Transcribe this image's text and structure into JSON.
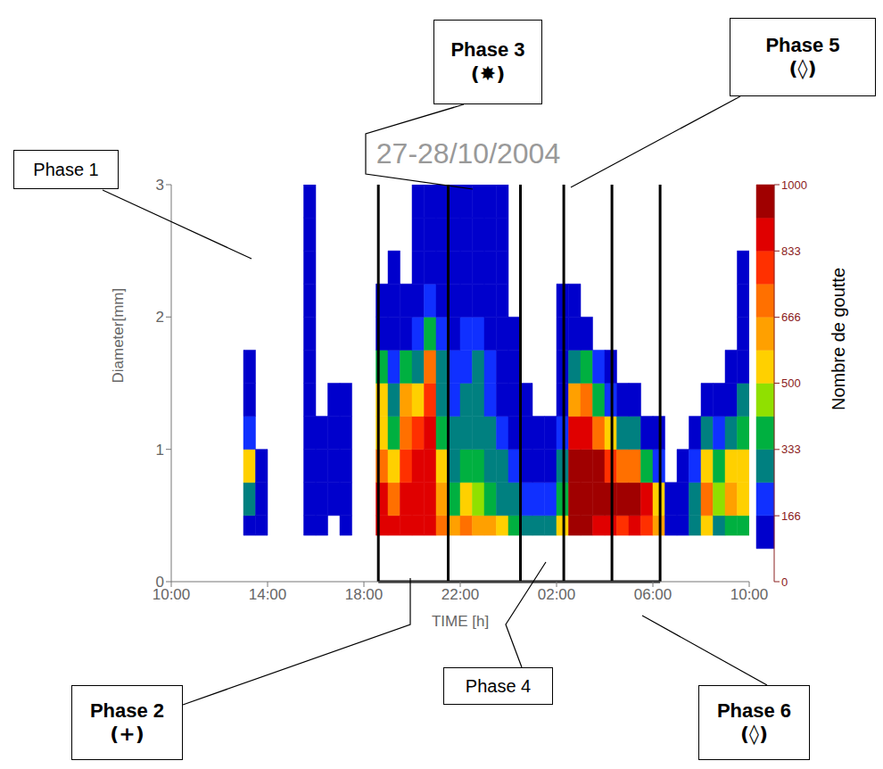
{
  "chart_data": {
    "type": "heatmap",
    "title": "27-28/10/2004",
    "x_label": "TIME [h]",
    "y_label": "Diameter[mm]",
    "xlim": [
      10,
      34
    ],
    "xticks": [
      {
        "value": 10,
        "label": "10:00"
      },
      {
        "value": 14,
        "label": "14:00"
      },
      {
        "value": 18,
        "label": "18:00"
      },
      {
        "value": 22,
        "label": "22:00"
      },
      {
        "value": 26,
        "label": "02:00"
      },
      {
        "value": 30,
        "label": "06:00"
      },
      {
        "value": 34,
        "label": "10:00"
      }
    ],
    "ylim": [
      0,
      3
    ],
    "yticks": [
      0,
      1,
      2,
      3
    ],
    "time_bins": [
      10,
      10.5,
      11,
      11.5,
      12,
      12.5,
      13,
      13.5,
      14,
      14.5,
      15,
      15.5,
      16,
      16.5,
      17,
      17.5,
      18,
      18.5,
      19,
      19.5,
      20,
      20.5,
      21,
      21.5,
      22,
      22.5,
      23,
      23.5,
      24,
      24.5,
      25,
      25.5,
      26,
      26.5,
      27,
      27.5,
      28,
      28.5,
      29,
      29.5,
      30,
      30.5,
      31,
      31.5,
      32,
      32.5,
      33,
      33.5,
      34
    ],
    "diameter_bins": [
      0.35,
      0.5,
      0.75,
      1.0,
      1.25,
      1.5,
      1.75,
      2.0,
      2.25,
      2.5,
      2.75,
      3.0
    ],
    "cells": [
      [
        0,
        0,
        0,
        0,
        0,
        0,
        0,
        0,
        0,
        0,
        0
      ],
      [
        0,
        0,
        0,
        0,
        0,
        0,
        0,
        0,
        0,
        0,
        0
      ],
      [
        0,
        0,
        0,
        0,
        0,
        0,
        0,
        0,
        0,
        0,
        0
      ],
      [
        0,
        0,
        0,
        0,
        0,
        0,
        0,
        0,
        0,
        0,
        0
      ],
      [
        0,
        0,
        0,
        0,
        0,
        0,
        0,
        0,
        0,
        0,
        0
      ],
      [
        0,
        0,
        0,
        0,
        0,
        0,
        0,
        0,
        0,
        0,
        0
      ],
      [
        120,
        300,
        500,
        200,
        120,
        120,
        0,
        0,
        0,
        0,
        0
      ],
      [
        120,
        150,
        120,
        0,
        0,
        0,
        0,
        0,
        0,
        0,
        0
      ],
      [
        0,
        0,
        0,
        0,
        0,
        0,
        0,
        0,
        0,
        0,
        0
      ],
      [
        0,
        0,
        0,
        0,
        0,
        0,
        0,
        0,
        0,
        0,
        0
      ],
      [
        0,
        0,
        0,
        0,
        0,
        0,
        0,
        0,
        0,
        0,
        0
      ],
      [
        120,
        150,
        150,
        120,
        120,
        120,
        120,
        120,
        120,
        120,
        120
      ],
      [
        120,
        150,
        150,
        120,
        0,
        0,
        0,
        0,
        0,
        0,
        0
      ],
      [
        0,
        150,
        150,
        120,
        120,
        0,
        0,
        0,
        0,
        0,
        0
      ],
      [
        120,
        150,
        150,
        120,
        120,
        0,
        0,
        0,
        0,
        0,
        0
      ],
      [
        0,
        0,
        0,
        0,
        0,
        0,
        0,
        0,
        0,
        0,
        0
      ],
      [
        0,
        0,
        0,
        0,
        0,
        0,
        0,
        0,
        0,
        0,
        0
      ],
      [
        900,
        900,
        700,
        550,
        500,
        350,
        150,
        120,
        0,
        0,
        0
      ],
      [
        850,
        700,
        500,
        400,
        300,
        200,
        150,
        120,
        120,
        0,
        0
      ],
      [
        900,
        850,
        800,
        700,
        600,
        350,
        150,
        120,
        0,
        0,
        0
      ],
      [
        850,
        900,
        850,
        750,
        550,
        300,
        200,
        150,
        120,
        120,
        120
      ],
      [
        900,
        900,
        900,
        850,
        800,
        700,
        400,
        200,
        120,
        120,
        120
      ],
      [
        700,
        600,
        500,
        400,
        300,
        250,
        200,
        150,
        150,
        150,
        150
      ],
      [
        600,
        400,
        300,
        250,
        200,
        200,
        150,
        150,
        150,
        150,
        150
      ],
      [
        700,
        500,
        350,
        300,
        250,
        200,
        200,
        150,
        150,
        150,
        150
      ],
      [
        650,
        450,
        350,
        300,
        250,
        250,
        200,
        150,
        150,
        150,
        150
      ],
      [
        600,
        400,
        300,
        250,
        200,
        200,
        150,
        150,
        150,
        120,
        120
      ],
      [
        500,
        300,
        250,
        200,
        150,
        150,
        150,
        120,
        120,
        120,
        120
      ],
      [
        350,
        250,
        200,
        150,
        150,
        150,
        120,
        0,
        0,
        0,
        0
      ],
      [
        300,
        200,
        150,
        120,
        120,
        0,
        0,
        0,
        0,
        0,
        0
      ],
      [
        250,
        200,
        150,
        120,
        0,
        0,
        0,
        0,
        0,
        0,
        0
      ],
      [
        300,
        200,
        150,
        120,
        0,
        0,
        0,
        0,
        0,
        0,
        0
      ],
      [
        500,
        400,
        300,
        200,
        150,
        120,
        120,
        120,
        0,
        0,
        0
      ],
      [
        950,
        1000,
        950,
        900,
        600,
        300,
        150,
        120,
        0,
        0,
        0
      ],
      [
        950,
        1000,
        1000,
        850,
        700,
        400,
        150,
        0,
        0,
        0,
        0
      ],
      [
        900,
        1000,
        950,
        700,
        400,
        200,
        0,
        0,
        0,
        0,
        0
      ],
      [
        850,
        950,
        800,
        500,
        200,
        120,
        0,
        0,
        0,
        0,
        0
      ],
      [
        800,
        950,
        700,
        300,
        150,
        0,
        0,
        0,
        0,
        0,
        0
      ],
      [
        850,
        950,
        700,
        250,
        120,
        0,
        0,
        0,
        0,
        0,
        0
      ],
      [
        800,
        850,
        400,
        150,
        0,
        0,
        0,
        0,
        0,
        0,
        0
      ],
      [
        600,
        500,
        200,
        120,
        0,
        0,
        0,
        0,
        0,
        0,
        0
      ],
      [
        150,
        150,
        0,
        0,
        0,
        0,
        0,
        0,
        0,
        0,
        0
      ],
      [
        150,
        150,
        120,
        0,
        0,
        0,
        0,
        0,
        0,
        0,
        0
      ],
      [
        300,
        300,
        200,
        120,
        0,
        0,
        0,
        0,
        0,
        0,
        0
      ],
      [
        500,
        700,
        500,
        250,
        120,
        0,
        0,
        0,
        0,
        0,
        0
      ],
      [
        300,
        450,
        350,
        200,
        120,
        0,
        0,
        0,
        0,
        0,
        0
      ],
      [
        400,
        600,
        500,
        300,
        150,
        120,
        0,
        0,
        0,
        0,
        0
      ],
      [
        350,
        500,
        500,
        400,
        250,
        150,
        120,
        120,
        120,
        0,
        0
      ]
    ],
    "colorbar": {
      "label": "Nombre de goutte",
      "range": [
        0,
        1000
      ],
      "ticks": [
        0,
        166,
        333,
        500,
        666,
        833,
        1000
      ],
      "colors": [
        "#ffffff",
        "#0000cc",
        "#1030ff",
        "#008080",
        "#00b040",
        "#90e000",
        "#ffd000",
        "#ffa000",
        "#ff7000",
        "#ff3000",
        "#e00000",
        "#a00000"
      ]
    },
    "phase_boundaries": [
      18.6,
      21.5,
      24.5,
      26.3,
      28.3,
      30.3
    ],
    "annotations": [
      {
        "label": "Phase 1"
      },
      {
        "label": "Phase 2",
        "symbol": "(+)"
      },
      {
        "label": "Phase 3",
        "symbol": "(✸)"
      },
      {
        "label": "Phase 4"
      },
      {
        "label": "Phase 5",
        "symbol": "(◊)"
      },
      {
        "label": "Phase 6",
        "symbol": "(◊)"
      }
    ]
  }
}
